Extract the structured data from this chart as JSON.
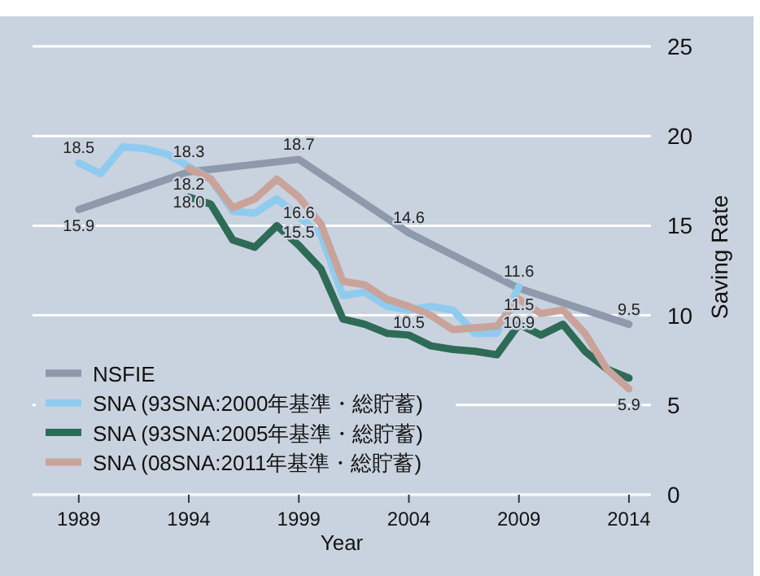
{
  "chart_data": {
    "type": "line",
    "xlabel": "Year",
    "ylabel": "Saving Rate",
    "xlim": [
      1986.9,
      2015
    ],
    "ylim": [
      0,
      26.5
    ],
    "xticks": [
      1989,
      1994,
      1999,
      2004,
      2009,
      2014
    ],
    "yticks": [
      0,
      5,
      10,
      15,
      20,
      25
    ],
    "grid": "y",
    "legend": "bottom left",
    "series": [
      {
        "name": "NSFIE",
        "color": "#8e99ab",
        "x": [
          1989,
          1994,
          1999,
          2004,
          2009,
          2014
        ],
        "values": [
          15.9,
          18.0,
          18.7,
          14.6,
          11.5,
          9.5
        ]
      },
      {
        "name": "SNA (93SNA:2000年基準・総貯蓄)",
        "color": "#8ecbef",
        "x": [
          1989,
          1990,
          1991,
          1992,
          1993,
          1994,
          1995,
          1996,
          1997,
          1998,
          1999,
          2000,
          2001,
          2002,
          2003,
          2004,
          2005,
          2006,
          2007,
          2008,
          2009
        ],
        "values": [
          18.5,
          17.9,
          19.4,
          19.3,
          19.0,
          18.3,
          17.6,
          15.8,
          15.7,
          16.5,
          15.5,
          14.5,
          11.1,
          11.3,
          10.5,
          10.3,
          10.5,
          10.3,
          9.0,
          9.0,
          11.6
        ]
      },
      {
        "name": "SNA (93SNA:2005年基準・総貯蓄)",
        "color": "#2e6b56",
        "x": [
          1994,
          1995,
          1996,
          1997,
          1998,
          1999,
          2000,
          2001,
          2002,
          2003,
          2004,
          2005,
          2006,
          2007,
          2008,
          2009,
          2010,
          2011,
          2012,
          2013,
          2014
        ],
        "values": [
          16.6,
          16.2,
          14.2,
          13.8,
          15.0,
          13.9,
          12.6,
          9.8,
          9.5,
          9.0,
          8.9,
          8.3,
          8.1,
          8.0,
          7.8,
          9.5,
          8.9,
          9.5,
          8.0,
          7.0,
          6.5
        ]
      },
      {
        "name": "SNA (08SNA:2011年基準・総貯蓄)",
        "color": "#c9a39a",
        "x": [
          1994,
          1995,
          1996,
          1997,
          1998,
          1999,
          2000,
          2001,
          2002,
          2003,
          2004,
          2005,
          2006,
          2007,
          2008,
          2009,
          2010,
          2011,
          2012,
          2013,
          2014
        ],
        "values": [
          18.2,
          17.6,
          16.0,
          16.5,
          17.6,
          16.6,
          15.1,
          11.9,
          11.7,
          10.9,
          10.5,
          10.0,
          9.2,
          9.3,
          9.4,
          10.9,
          10.1,
          10.3,
          9.0,
          7.0,
          5.9
        ]
      }
    ],
    "annotations": [
      {
        "text": "18.5",
        "x": 1989,
        "y": 18.5
      },
      {
        "text": "15.9",
        "x": 1989,
        "y": 15.9
      },
      {
        "text": "18.0",
        "x": 1994,
        "y": 18.0
      },
      {
        "text": "18.3",
        "x": 1994,
        "y": 18.3
      },
      {
        "text": "18.2",
        "x": 1994,
        "y": 18.2
      },
      {
        "text": "18.7",
        "x": 1999,
        "y": 18.7
      },
      {
        "text": "16.6",
        "x": 1999,
        "y": 16.6
      },
      {
        "text": "15.5",
        "x": 1999,
        "y": 15.5
      },
      {
        "text": "14.6",
        "x": 2004,
        "y": 14.6
      },
      {
        "text": "10.5",
        "x": 2004,
        "y": 10.5
      },
      {
        "text": "11.5",
        "x": 2009,
        "y": 11.5
      },
      {
        "text": "11.6",
        "x": 2009,
        "y": 11.6
      },
      {
        "text": "10.9",
        "x": 2009,
        "y": 10.9
      },
      {
        "text": "9.5",
        "x": 2014,
        "y": 9.5
      },
      {
        "text": "5.9",
        "x": 2014,
        "y": 5.9
      }
    ]
  }
}
